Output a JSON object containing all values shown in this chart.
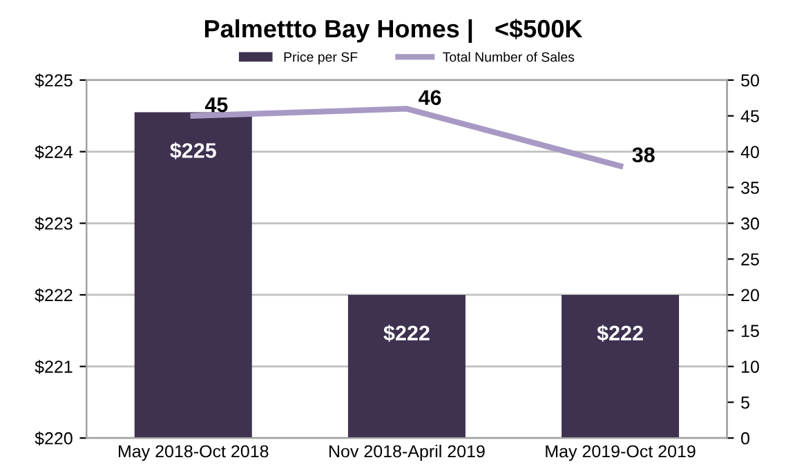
{
  "chart_data": {
    "type": "bar",
    "title": "Palmettto Bay Homes |   <$500K",
    "categories": [
      "May 2018-Oct 2018",
      "Nov 2018-April 2019",
      "May 2019-Oct 2019"
    ],
    "series": [
      {
        "name": "Price per SF",
        "color": "#3f3150",
        "values": [
          224.55,
          222,
          222
        ],
        "value_labels": [
          "$225",
          "$222",
          "$222"
        ]
      },
      {
        "name": "Total Number of Sales",
        "type": "line",
        "axis": "y2",
        "color": "#a899c4",
        "values": [
          45,
          46,
          38
        ],
        "data_labels": true
      }
    ],
    "ylim": [
      220,
      225
    ],
    "yticks": [
      {
        "value": 220,
        "label": "$220"
      },
      {
        "value": 221,
        "label": "$221"
      },
      {
        "value": 222,
        "label": "$222"
      },
      {
        "value": 223,
        "label": "$223"
      },
      {
        "value": 224,
        "label": "$224"
      },
      {
        "value": 225,
        "label": "$225"
      }
    ],
    "y2lim": [
      0,
      50
    ],
    "y2ticks": [
      0,
      5,
      10,
      15,
      20,
      25,
      30,
      35,
      40,
      45,
      50
    ],
    "grid": "y",
    "legend": "top",
    "marker": "none"
  }
}
